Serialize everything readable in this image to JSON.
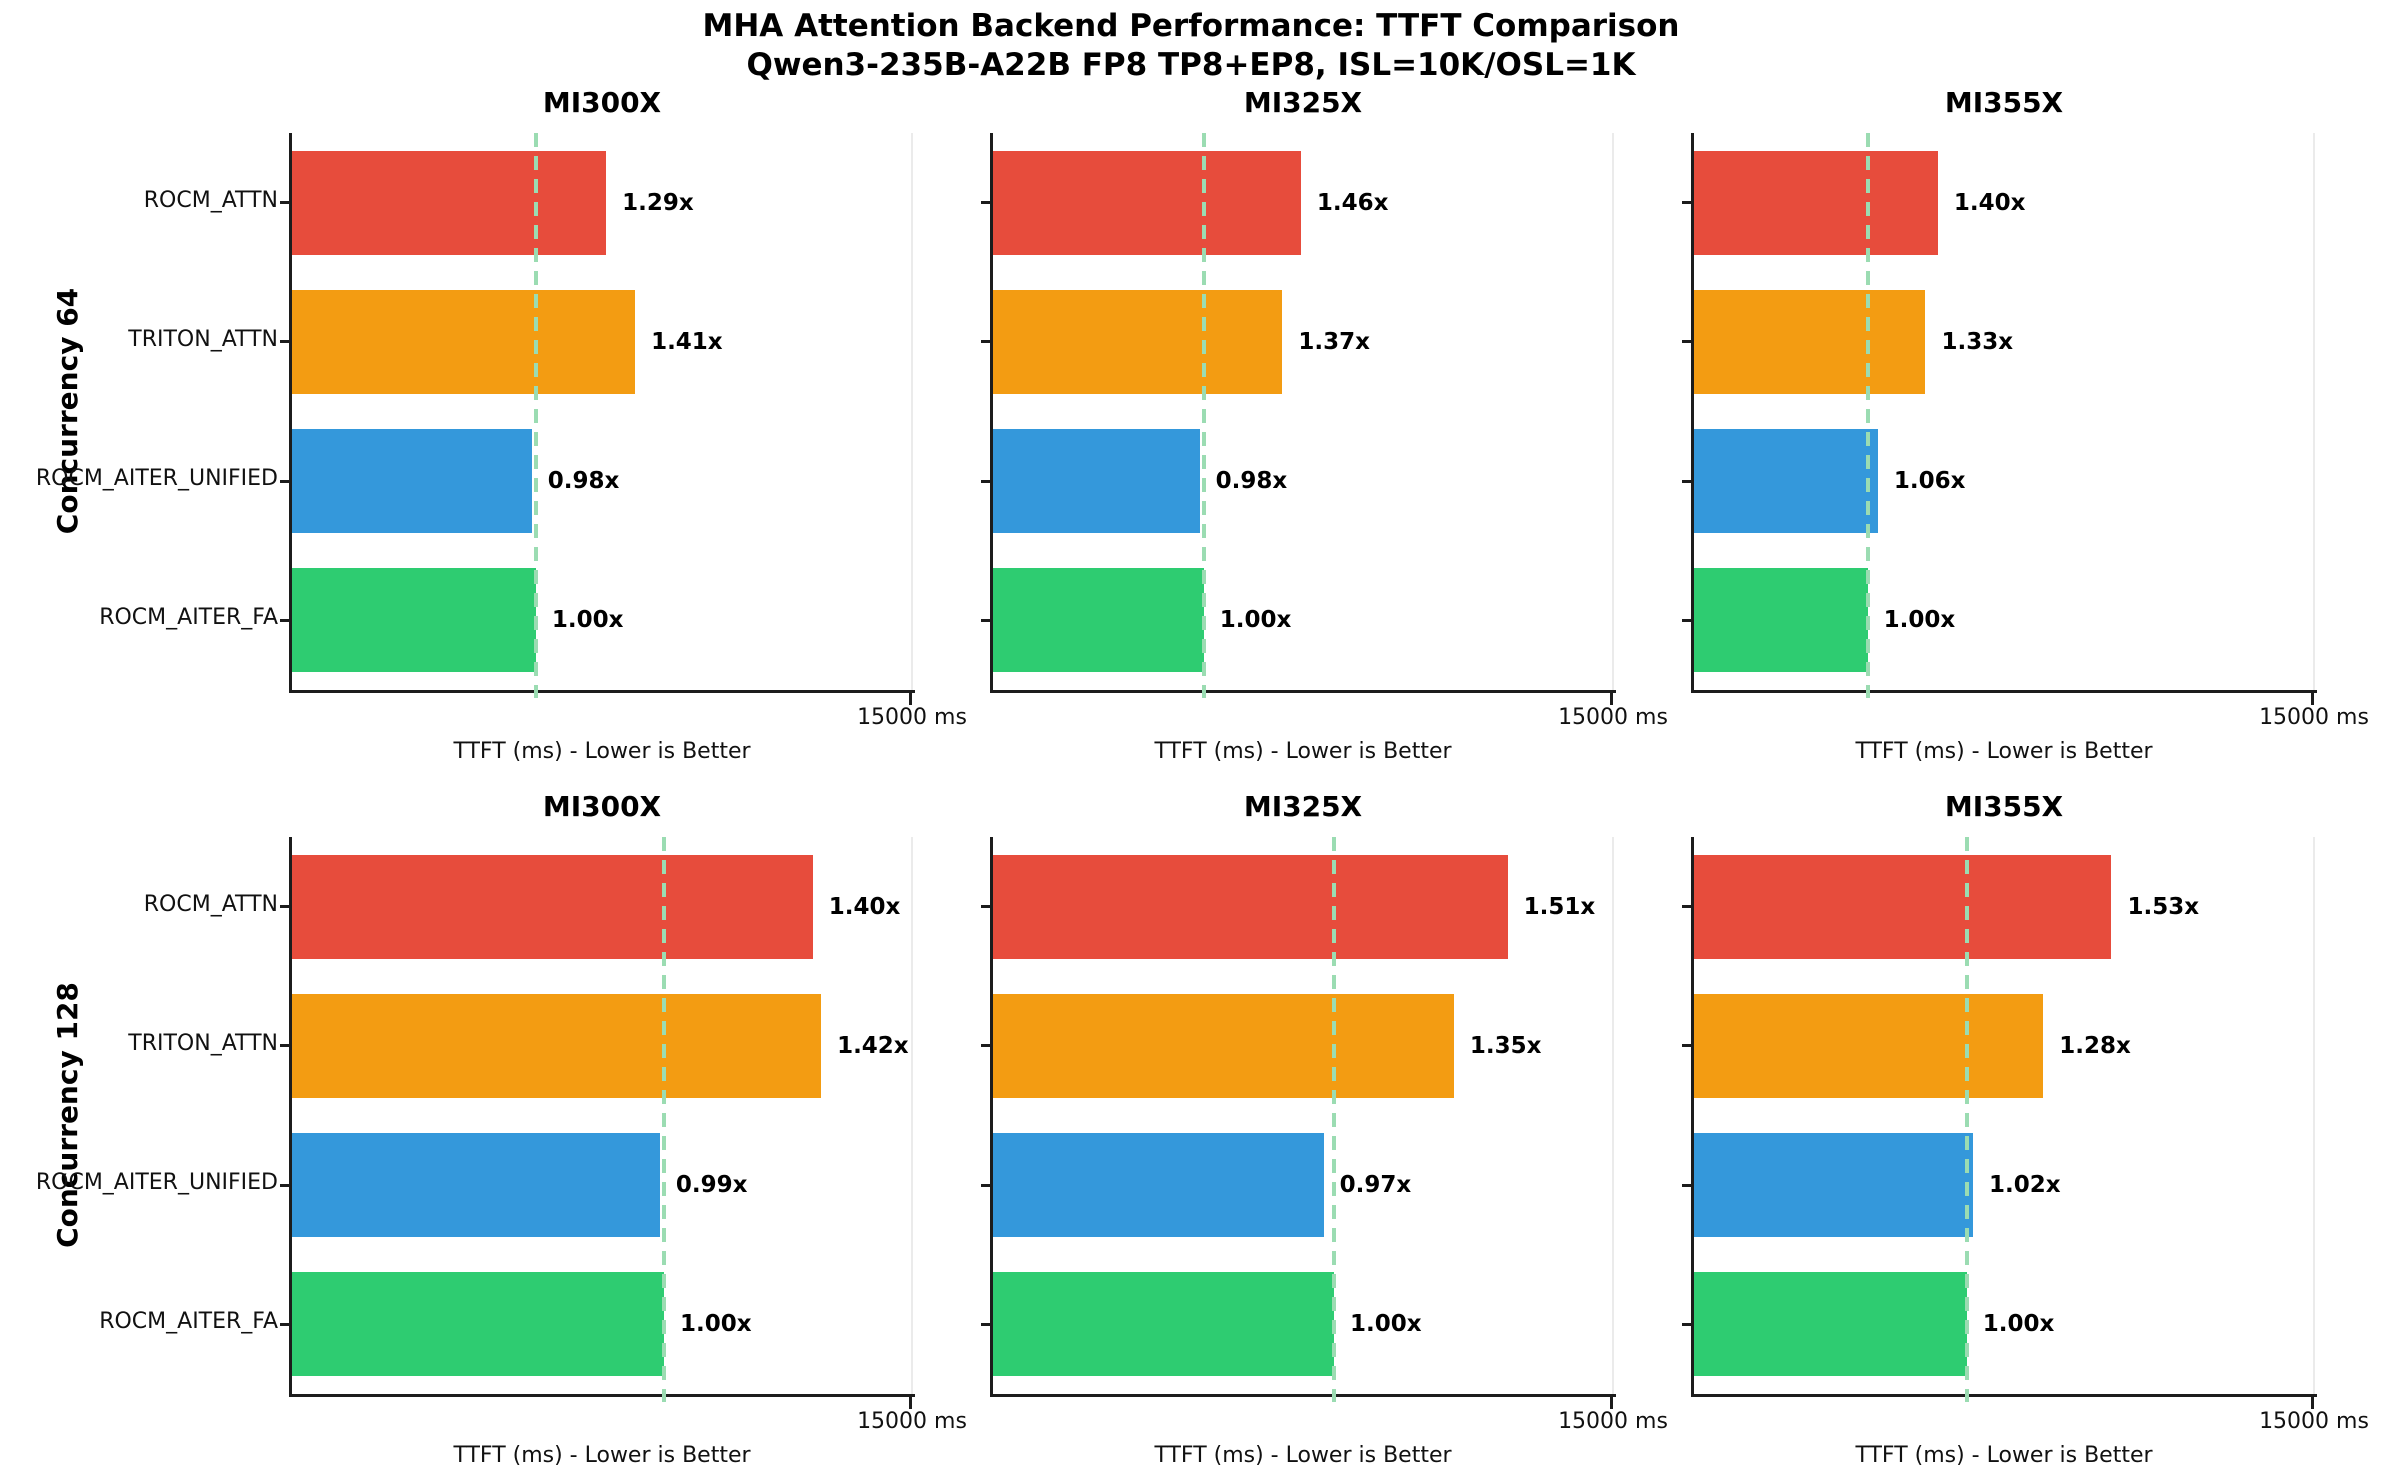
{
  "figure_title": {
    "line1": "MHA Attention Backend Performance: TTFT Comparison",
    "line2": "Qwen3-235B-A22B FP8 TP8+EP8, ISL=10K/OSL=1K"
  },
  "chart_data": {
    "type": "bar",
    "orientation": "horizontal",
    "title": "MHA Attention Backend Performance: TTFT Comparison",
    "subtitle": "Qwen3-235B-A22B FP8 TP8+EP8, ISL=10K/OSL=1K",
    "grid": "off",
    "legend": "none",
    "xlabel": "TTFT (ms) - Lower is Better",
    "xlim": [
      0,
      15000
    ],
    "x_tick_label": "15000 ms",
    "categories": [
      "ROCM_ATTN",
      "TRITON_ATTN",
      "ROCM_AITER_UNIFIED",
      "ROCM_AITER_FA"
    ],
    "bar_colors": [
      "#e74c3c",
      "#f39c12",
      "#3498db",
      "#2ecc71"
    ],
    "baseline_series": "ROCM_AITER_FA",
    "baseline_line_color": "#9bdcb2",
    "spine_color": "#1c1c1c",
    "rows": [
      {
        "row_label": "Concurrency 64",
        "subplots": [
          {
            "title": "MI300X",
            "speedup_labels": [
              "1.29x",
              "1.41x",
              "0.98x",
              "1.00x"
            ],
            "speedup_vs_baseline": [
              1.29,
              1.41,
              0.98,
              1.0
            ],
            "ttft_ms_est": [
              7600,
              8300,
              5800,
              5900
            ],
            "baseline_ms_est": 5900
          },
          {
            "title": "MI325X",
            "speedup_labels": [
              "1.46x",
              "1.37x",
              "0.98x",
              "1.00x"
            ],
            "speedup_vs_baseline": [
              1.46,
              1.37,
              0.98,
              1.0
            ],
            "ttft_ms_est": [
              7450,
              7000,
              5000,
              5100
            ],
            "baseline_ms_est": 5100
          },
          {
            "title": "MI355X",
            "speedup_labels": [
              "1.40x",
              "1.33x",
              "1.06x",
              "1.00x"
            ],
            "speedup_vs_baseline": [
              1.4,
              1.33,
              1.06,
              1.0
            ],
            "ttft_ms_est": [
              5900,
              5600,
              4450,
              4200
            ],
            "baseline_ms_est": 4200
          }
        ]
      },
      {
        "row_label": "Concurrency 128",
        "subplots": [
          {
            "title": "MI300X",
            "speedup_labels": [
              "1.40x",
              "1.42x",
              "0.99x",
              "1.00x"
            ],
            "speedup_vs_baseline": [
              1.4,
              1.42,
              0.99,
              1.0
            ],
            "ttft_ms_est": [
              12600,
              12800,
              8900,
              9000
            ],
            "baseline_ms_est": 9000
          },
          {
            "title": "MI325X",
            "speedup_labels": [
              "1.51x",
              "1.35x",
              "0.97x",
              "1.00x"
            ],
            "speedup_vs_baseline": [
              1.51,
              1.35,
              0.97,
              1.0
            ],
            "ttft_ms_est": [
              12450,
              11150,
              8000,
              8250
            ],
            "baseline_ms_est": 8250
          },
          {
            "title": "MI355X",
            "speedup_labels": [
              "1.53x",
              "1.28x",
              "1.02x",
              "1.00x"
            ],
            "speedup_vs_baseline": [
              1.53,
              1.28,
              1.02,
              1.0
            ],
            "ttft_ms_est": [
              10100,
              8450,
              6750,
              6600
            ],
            "baseline_ms_est": 6600
          }
        ]
      }
    ]
  }
}
